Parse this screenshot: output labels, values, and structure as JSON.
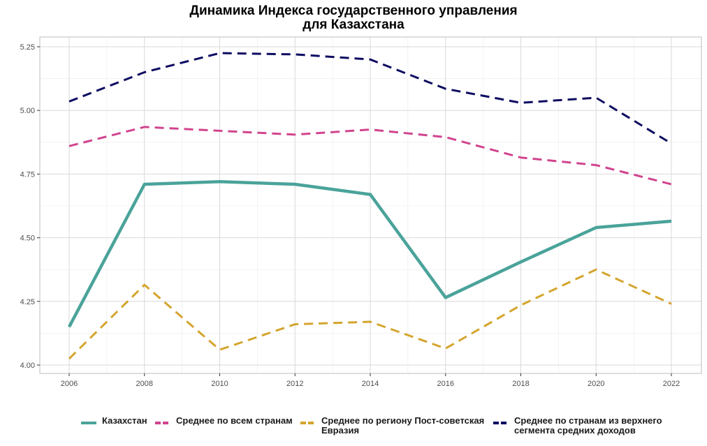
{
  "chart_data": {
    "type": "line",
    "title_lines": [
      "Динамика Индекса государственного управления",
      "для Казахстана"
    ],
    "xlabel": "",
    "ylabel": "",
    "x_ticks": [
      2006,
      2008,
      2010,
      2012,
      2014,
      2016,
      2018,
      2020,
      2022
    ],
    "y_ticks": [
      4.0,
      4.25,
      4.5,
      4.75,
      5.0,
      5.25
    ],
    "y_tick_labels": [
      "4.00",
      "4.25",
      "4.50",
      "4.75",
      "5.00",
      "5.25"
    ],
    "xlim": [
      2006,
      2022
    ],
    "ylim": [
      4.0,
      5.25
    ],
    "grid": true,
    "legend_position": "bottom",
    "series": [
      {
        "name": "Казахстан",
        "color": "#4aa39a",
        "style": "solid",
        "x": [
          2006,
          2008,
          2010,
          2012,
          2014,
          2016,
          2018,
          2020,
          2022
        ],
        "values": [
          4.15,
          4.71,
          4.72,
          4.71,
          4.67,
          4.265,
          4.405,
          4.54,
          4.565
        ]
      },
      {
        "name": "Среднее по всем странам",
        "color": "#d1448e",
        "style": "dashed",
        "x": [
          2006,
          2008,
          2010,
          2012,
          2014,
          2016,
          2018,
          2020,
          2022
        ],
        "values": [
          4.86,
          4.935,
          4.92,
          4.905,
          4.925,
          4.895,
          4.815,
          4.785,
          4.71
        ]
      },
      {
        "name": "Среднее по региону Пост-советская\nЕвразия",
        "color": "#d4a52e",
        "style": "dashed",
        "x": [
          2006,
          2008,
          2010,
          2012,
          2014,
          2016,
          2018,
          2020,
          2022
        ],
        "values": [
          4.025,
          4.315,
          4.06,
          4.16,
          4.17,
          4.065,
          4.235,
          4.375,
          4.24
        ]
      },
      {
        "name": "Среднее по странам из верхнего\nсегмента средних доходов",
        "color": "#0d0b61",
        "style": "dashed",
        "x": [
          2006,
          2008,
          2010,
          2012,
          2014,
          2016,
          2018,
          2020,
          2022
        ],
        "values": [
          5.035,
          5.15,
          5.225,
          5.22,
          5.2,
          5.085,
          5.03,
          5.05,
          4.87
        ]
      }
    ]
  }
}
